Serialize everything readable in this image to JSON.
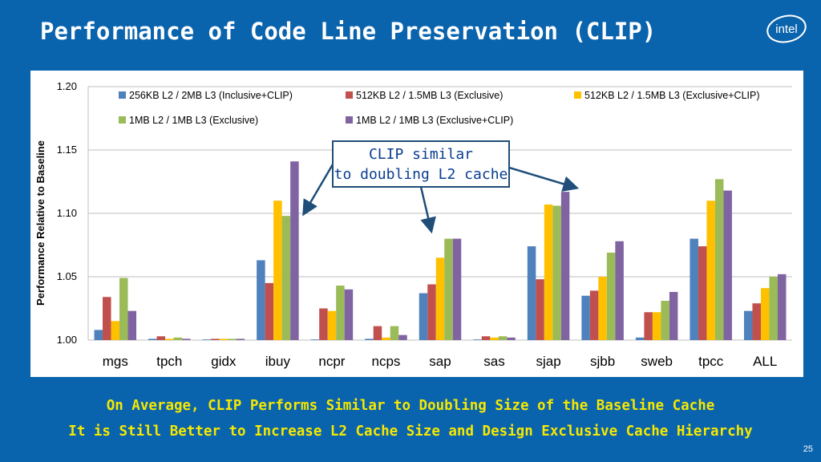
{
  "slide": {
    "title": "Performance of Code Line Preservation (CLIP)",
    "logo_text": "intel",
    "summary_line1": "On Average, CLIP Performs Similar to Doubling Size of the Baseline Cache",
    "summary_line2": "It is Still Better to Increase L2 Cache Size and Design Exclusive Cache Hierarchy",
    "page_number": "25",
    "callout_line1": "CLIP similar",
    "callout_line2": "to doubling L2 cache"
  },
  "colors": {
    "background": "#0a63ad",
    "subtitle": "#f5e800"
  },
  "chart_data": {
    "type": "bar",
    "title": "",
    "xlabel": "",
    "ylabel": "Performance Relative to Baseline",
    "ylim": [
      1.0,
      1.2
    ],
    "yticks": [
      "1.00",
      "1.05",
      "1.10",
      "1.15",
      "1.20"
    ],
    "grid": true,
    "legend_position": "top",
    "categories": [
      "mgs",
      "tpch",
      "gidx",
      "ibuy",
      "ncpr",
      "ncps",
      "sap",
      "sas",
      "sjap",
      "sjbb",
      "sweb",
      "tpcc",
      "ALL"
    ],
    "series": [
      {
        "name": "256KB L2 / 2MB L3 (Inclusive+CLIP)",
        "color": "#4f81bd",
        "values": [
          1.008,
          1.001,
          1.0,
          1.063,
          1.0,
          1.001,
          1.037,
          1.0,
          1.074,
          1.035,
          1.002,
          1.08,
          1.023
        ]
      },
      {
        "name": "512KB L2 / 1.5MB L3 (Exclusive)",
        "color": "#c0504d",
        "values": [
          1.034,
          1.003,
          1.001,
          1.045,
          1.025,
          1.011,
          1.044,
          1.003,
          1.048,
          1.039,
          1.022,
          1.074,
          1.029
        ]
      },
      {
        "name": "512KB L2 / 1.5MB L3 (Exclusive+CLIP)",
        "color": "#ffc000",
        "values": [
          1.015,
          1.001,
          1.001,
          1.11,
          1.023,
          1.002,
          1.065,
          1.002,
          1.107,
          1.05,
          1.022,
          1.11,
          1.041
        ]
      },
      {
        "name": "1MB L2 / 1MB L3 (Exclusive)",
        "color": "#9bbb59",
        "values": [
          1.049,
          1.002,
          1.001,
          1.098,
          1.043,
          1.011,
          1.08,
          1.003,
          1.106,
          1.069,
          1.031,
          1.127,
          1.05
        ]
      },
      {
        "name": "1MB L2 / 1MB L3 (Exclusive+CLIP)",
        "color": "#8064a2",
        "values": [
          1.023,
          1.001,
          1.001,
          1.141,
          1.04,
          1.004,
          1.08,
          1.002,
          1.117,
          1.078,
          1.038,
          1.118,
          1.052
        ]
      }
    ]
  }
}
